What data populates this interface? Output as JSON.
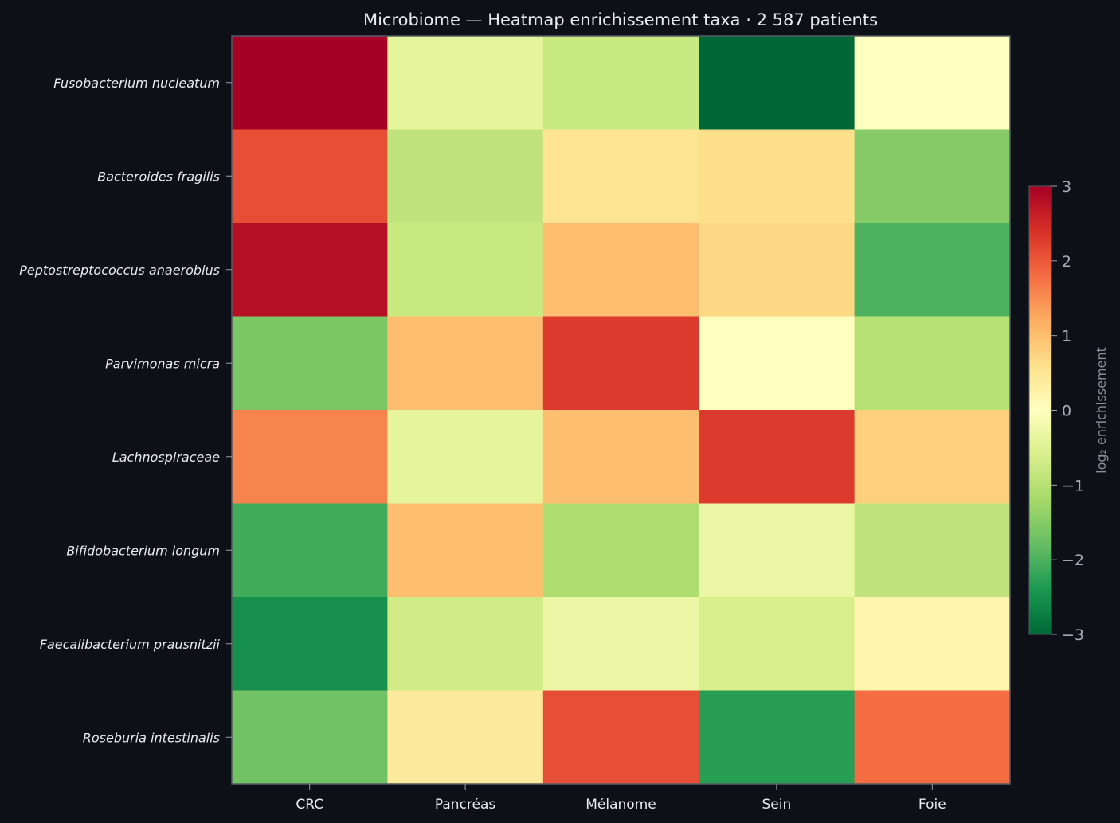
{
  "chart_data": {
    "type": "heatmap",
    "title": "Microbiome — Heatmap enrichissement taxa · 2 587 patients",
    "rows": [
      "Fusobacterium nucleatum",
      "Bacteroides fragilis",
      "Peptostreptococcus anaerobius",
      "Parvimonas micra",
      "Lachnospiraceae",
      "Bifidobacterium longum",
      "Faecalibacterium prausnitzii",
      "Roseburia intestinalis"
    ],
    "columns": [
      "CRC",
      "Pancréas",
      "Mélanome",
      "Sein",
      "Foie"
    ],
    "values": [
      [
        3.0,
        -0.4,
        -0.8,
        -3.0,
        0.0
      ],
      [
        2.1,
        -0.9,
        0.5,
        0.6,
        -1.5
      ],
      [
        2.8,
        -0.8,
        1.0,
        0.7,
        -2.0
      ],
      [
        -1.6,
        1.0,
        2.3,
        0.0,
        -1.0
      ],
      [
        1.6,
        -0.4,
        1.0,
        2.3,
        0.8
      ],
      [
        -2.1,
        1.0,
        -1.1,
        -0.3,
        -0.9
      ],
      [
        -2.5,
        -0.7,
        -0.3,
        -0.6,
        0.2
      ],
      [
        -1.7,
        0.4,
        2.1,
        -2.3,
        1.8
      ]
    ],
    "colorbar": {
      "label": "log₂ enrichissement",
      "range": [
        -3,
        3
      ],
      "ticks": [
        3,
        2,
        1,
        0,
        -1,
        -2,
        -3
      ],
      "tick_labels": [
        "3",
        "2",
        "1",
        "0",
        "−1",
        "−2",
        "−3"
      ],
      "colormap": "RdYlGn_r"
    },
    "colors": {
      "background": "#0d1017",
      "text": "#e8eaee",
      "muted_text": "#a8acb4",
      "frame": "#555a63"
    }
  }
}
